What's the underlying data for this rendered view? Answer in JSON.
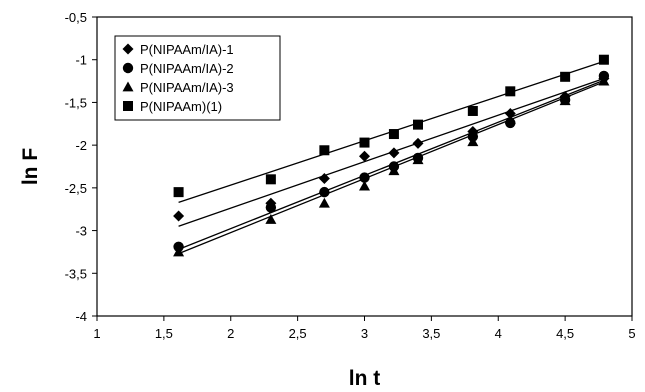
{
  "chart_data": {
    "type": "scatter",
    "xlabel": "ln t",
    "ylabel": "ln F",
    "xlim": [
      1,
      5
    ],
    "ylim": [
      -4,
      -0.5
    ],
    "x_ticks": [
      1,
      1.5,
      2,
      2.5,
      3,
      3.5,
      4,
      4.5,
      5
    ],
    "y_ticks": [
      -4,
      -3.5,
      -3,
      -2.5,
      -2,
      -1.5,
      -1,
      -0.5
    ],
    "x_tick_labels": [
      "1",
      "1,5",
      "2",
      "2,5",
      "3",
      "3,5",
      "4",
      "4,5",
      "5"
    ],
    "y_tick_labels": [
      "-4",
      "-3,5",
      "-3",
      "-2,5",
      "-2",
      "-1,5",
      "-1",
      "-0,5"
    ],
    "grid": false,
    "legend_position": "top-left",
    "series": [
      {
        "name": "P(NIPAAm/IA)-1",
        "marker": "diamond",
        "x": [
          1.61,
          2.3,
          2.7,
          3.0,
          3.22,
          3.4,
          3.81,
          4.09,
          4.5,
          4.79
        ],
        "y": [
          -2.83,
          -2.68,
          -2.39,
          -2.13,
          -2.09,
          -1.98,
          -1.84,
          -1.63,
          -1.43,
          -1.22
        ],
        "fit": [
          [
            1.61,
            -2.95
          ],
          [
            4.79,
            -1.22
          ]
        ]
      },
      {
        "name": "P(NIPAAm/IA)-2",
        "marker": "circle",
        "x": [
          1.61,
          2.3,
          2.7,
          3.0,
          3.22,
          3.4,
          3.81,
          4.09,
          4.5,
          4.79
        ],
        "y": [
          -3.19,
          -2.73,
          -2.55,
          -2.38,
          -2.25,
          -2.15,
          -1.9,
          -1.74,
          -1.47,
          -1.19
        ],
        "fit": [
          [
            1.61,
            -3.22
          ],
          [
            4.79,
            -1.24
          ]
        ]
      },
      {
        "name": "P(NIPAAm/IA)-3",
        "marker": "triangle",
        "x": [
          1.61,
          2.3,
          2.7,
          3.0,
          3.22,
          3.4,
          3.81,
          4.09,
          4.5,
          4.79
        ],
        "y": [
          -3.25,
          -2.87,
          -2.68,
          -2.48,
          -2.3,
          -2.17,
          -1.96,
          -1.7,
          -1.48,
          -1.25
        ],
        "fit": [
          [
            1.61,
            -3.27
          ],
          [
            4.79,
            -1.26
          ]
        ]
      },
      {
        "name": "P(NIPAAm)(1)",
        "marker": "square",
        "x": [
          1.61,
          2.3,
          2.7,
          3.0,
          3.22,
          3.4,
          3.81,
          4.09,
          4.5,
          4.79
        ],
        "y": [
          -2.55,
          -2.4,
          -2.06,
          -1.97,
          -1.87,
          -1.76,
          -1.6,
          -1.37,
          -1.2,
          -1.0
        ],
        "fit": [
          [
            1.61,
            -2.67
          ],
          [
            4.79,
            -1.02
          ]
        ]
      }
    ]
  }
}
